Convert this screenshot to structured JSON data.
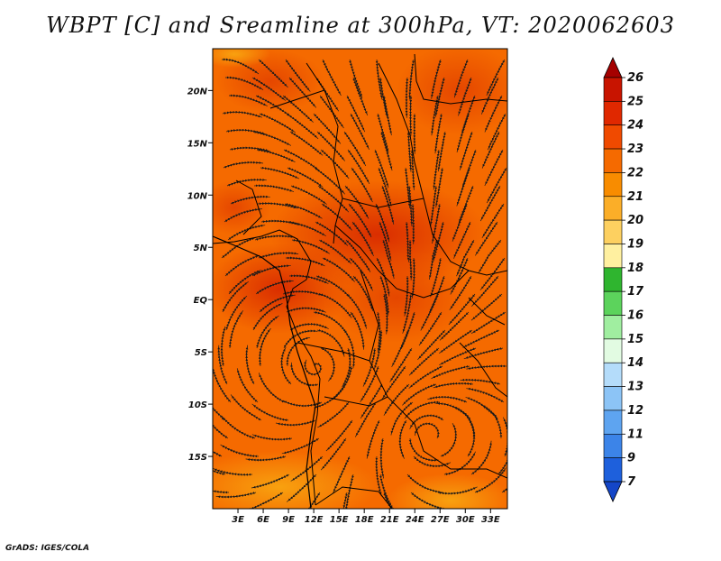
{
  "title": "WBPT [C] and Sreamline at 300hPa, VT: 2020062603",
  "footer": "GrADS: IGES/COLA",
  "map": {
    "variable": "Wet-bulb potential temperature",
    "units": "C",
    "level": "300hPa",
    "valid_time": "2020062603",
    "lon_range": [
      0,
      35
    ],
    "lat_range": [
      -20,
      24
    ],
    "lat_ticks": [
      {
        "value": 20,
        "label": "20N"
      },
      {
        "value": 15,
        "label": "15N"
      },
      {
        "value": 10,
        "label": "10N"
      },
      {
        "value": 5,
        "label": "5N"
      },
      {
        "value": 0,
        "label": "EQ"
      },
      {
        "value": -5,
        "label": "5S"
      },
      {
        "value": -10,
        "label": "10S"
      },
      {
        "value": -15,
        "label": "15S"
      }
    ],
    "lon_ticks": [
      {
        "value": 3,
        "label": "3E"
      },
      {
        "value": 6,
        "label": "6E"
      },
      {
        "value": 9,
        "label": "9E"
      },
      {
        "value": 12,
        "label": "12E"
      },
      {
        "value": 15,
        "label": "15E"
      },
      {
        "value": 18,
        "label": "18E"
      },
      {
        "value": 21,
        "label": "21E"
      },
      {
        "value": 24,
        "label": "24E"
      },
      {
        "value": 27,
        "label": "27E"
      },
      {
        "value": 30,
        "label": "30E"
      },
      {
        "value": 33,
        "label": "33E"
      }
    ]
  },
  "colorbar": {
    "labels": [
      "26",
      "25",
      "24",
      "23",
      "22",
      "21",
      "20",
      "19",
      "18",
      "17",
      "16",
      "15",
      "14",
      "13",
      "12",
      "11",
      "9",
      "7"
    ],
    "colors": [
      "#a50000",
      "#c81400",
      "#e02800",
      "#f04a00",
      "#f56a00",
      "#f88c00",
      "#fbae28",
      "#fdd060",
      "#fff0a0",
      "#2fb52f",
      "#5cd35c",
      "#a0eea0",
      "#e2fbe2",
      "#b4dcfa",
      "#8cc4f6",
      "#5ea4f0",
      "#3c84e8",
      "#1e60dc",
      "#1446c8"
    ]
  },
  "colors": {
    "field_base": "#f56a00",
    "field_warm": "#e03a00",
    "field_cool": "#f9a000",
    "lines": "#1a1a1a"
  }
}
